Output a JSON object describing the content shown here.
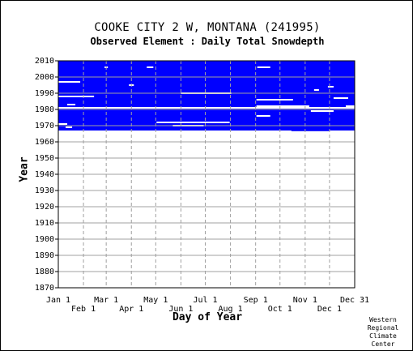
{
  "chart_data": {
    "type": "heatmap",
    "title": "COOKE CITY 2 W, MONTANA   (241995)",
    "subtitle": "Observed Element : Daily Total Snowdepth",
    "xlabel": "Day of Year",
    "ylabel": "Year",
    "ylim": [
      1870,
      2010
    ],
    "xlim": [
      1,
      366
    ],
    "y_ticks": [
      2010,
      2000,
      1990,
      1980,
      1970,
      1960,
      1950,
      1940,
      1930,
      1920,
      1910,
      1900,
      1890,
      1880,
      1870
    ],
    "x_ticks_upper": [
      {
        "label": "Jan 1",
        "day": 1
      },
      {
        "label": "Mar 1",
        "day": 60
      },
      {
        "label": "May 1",
        "day": 121
      },
      {
        "label": "Jul 1",
        "day": 182
      },
      {
        "label": "Sep 1",
        "day": 244
      },
      {
        "label": "Nov 1",
        "day": 305
      },
      {
        "label": "Dec 31",
        "day": 366
      }
    ],
    "x_ticks_lower": [
      {
        "label": "Feb 1",
        "day": 32
      },
      {
        "label": "Apr 1",
        "day": 91
      },
      {
        "label": "Jun 1",
        "day": 152
      },
      {
        "label": "Aug 1",
        "day": 213
      },
      {
        "label": "Oct 1",
        "day": 274
      },
      {
        "label": "Dec 1",
        "day": 335
      }
    ],
    "data_color": "#0000ff",
    "background_color": "#ffffff",
    "grid": true,
    "coverage": {
      "start_year": 1967,
      "end_year": 2010,
      "first_day_start_year": 1,
      "late_start_intervals": [
        {
          "start_day": 142,
          "end_day": 167,
          "first_year": 1968
        },
        {
          "start_day": 167,
          "end_day": 196,
          "first_year": 1967
        },
        {
          "start_day": 196,
          "end_day": 240,
          "first_year": 1968
        },
        {
          "start_day": 288,
          "end_day": 335,
          "first_year": 1966.6
        },
        {
          "start_day": 335,
          "end_day": 366,
          "first_year": 1967.5
        }
      ]
    },
    "missing_segments": [
      {
        "year": 1997,
        "start_day": 1,
        "end_day": 28
      },
      {
        "year": 1988,
        "start_day": 1,
        "end_day": 45
      },
      {
        "year": 1983,
        "start_day": 12,
        "end_day": 22
      },
      {
        "year": 1981,
        "start_day": 1,
        "end_day": 366
      },
      {
        "year": 1990,
        "start_day": 152,
        "end_day": 214
      },
      {
        "year": 1972,
        "start_day": 122,
        "end_day": 212
      },
      {
        "year": 1970,
        "start_day": 142,
        "end_day": 180
      },
      {
        "year": 2006,
        "start_day": 246,
        "end_day": 262
      },
      {
        "year": 1986,
        "start_day": 245,
        "end_day": 290
      },
      {
        "year": 1982,
        "start_day": 245,
        "end_day": 310
      },
      {
        "year": 1976,
        "start_day": 245,
        "end_day": 262
      },
      {
        "year": 1981,
        "start_day": 312,
        "end_day": 345
      },
      {
        "year": 1979,
        "start_day": 312,
        "end_day": 340
      },
      {
        "year": 1987,
        "start_day": 340,
        "end_day": 358
      },
      {
        "year": 1982,
        "start_day": 355,
        "end_day": 366
      },
      {
        "year": 1971,
        "start_day": 1,
        "end_day": 12
      },
      {
        "year": 1969,
        "start_day": 10,
        "end_day": 18
      },
      {
        "year": 2006,
        "start_day": 110,
        "end_day": 118
      },
      {
        "year": 2006,
        "start_day": 58,
        "end_day": 62
      },
      {
        "year": 1995,
        "start_day": 88,
        "end_day": 94
      },
      {
        "year": 1992,
        "start_day": 316,
        "end_day": 322
      },
      {
        "year": 1994,
        "start_day": 333,
        "end_day": 340
      }
    ]
  },
  "credit": {
    "line1": "Western",
    "line2": "Regional",
    "line3": "Climate",
    "line4": "Center"
  }
}
